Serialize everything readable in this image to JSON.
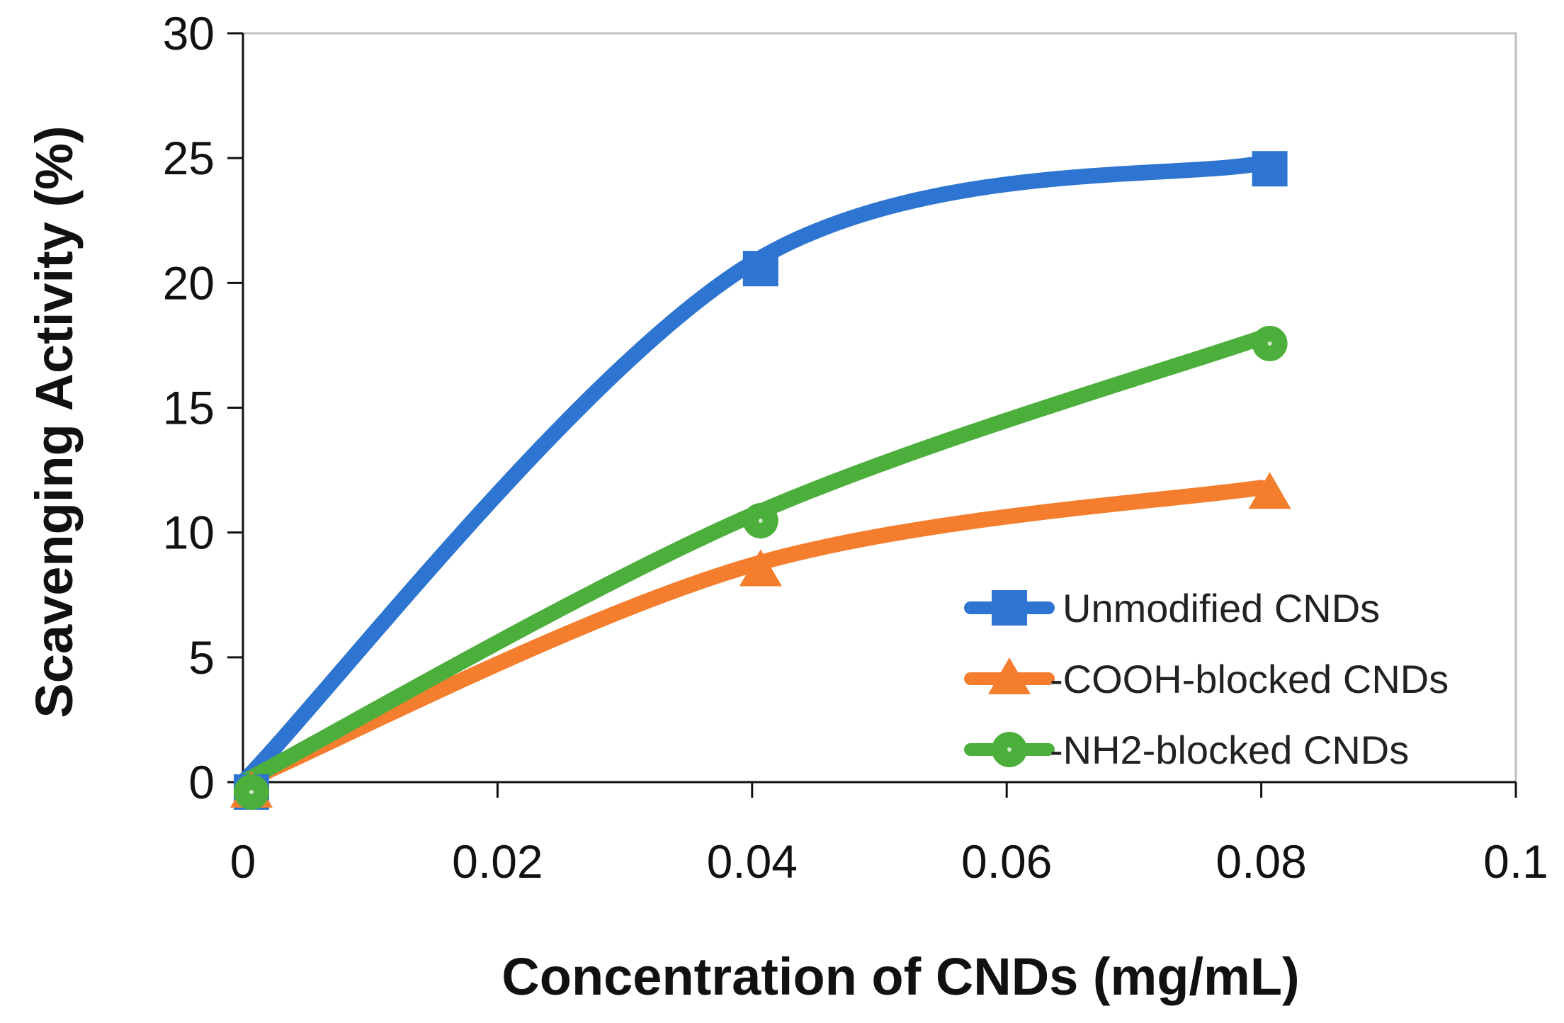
{
  "chart_data": {
    "type": "line",
    "title": "",
    "xlabel": "Concentration  of CNDs (mg/mL)",
    "ylabel": "Scavenging Activity (%)",
    "xlim": [
      0,
      0.1
    ],
    "ylim": [
      0,
      30
    ],
    "x_ticks": [
      0,
      0.02,
      0.04,
      0.06,
      0.08,
      0.1
    ],
    "x_tick_labels": [
      "0",
      "0.02",
      "0.04",
      "0.06",
      "0.08",
      "0.1"
    ],
    "y_ticks": [
      0,
      5,
      10,
      15,
      20,
      25,
      30
    ],
    "y_tick_labels": [
      "0",
      "5",
      "10",
      "15",
      "20",
      "25",
      "30"
    ],
    "grid": false,
    "legend_position": "bottom-right",
    "x": [
      0,
      0.04,
      0.08
    ],
    "series": [
      {
        "name": "Unmodified CNDs",
        "marker": "square",
        "color": "#2E75D1",
        "values": [
          0,
          20.8,
          24.8
        ]
      },
      {
        "name": "-COOH-blocked CNDs",
        "marker": "triangle",
        "color": "#F47E2E",
        "values": [
          0,
          8.7,
          11.8
        ]
      },
      {
        "name": "-NH2-blocked CNDs",
        "marker": "circle",
        "color": "#4CAF3B",
        "values": [
          0,
          10.7,
          17.8
        ]
      }
    ]
  }
}
